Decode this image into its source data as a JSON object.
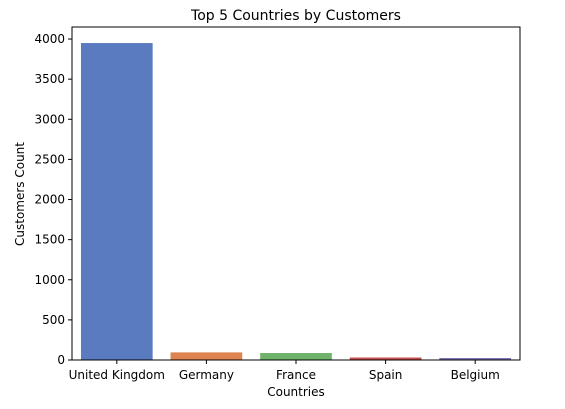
{
  "chart_data": {
    "type": "bar",
    "title": "Top 5 Countries by Customers",
    "xlabel": "Countries",
    "ylabel": "Customers Count",
    "categories": [
      "United Kingdom",
      "Germany",
      "France",
      "Spain",
      "Belgium"
    ],
    "values": [
      3950,
      95,
      87,
      31,
      25
    ],
    "colors": [
      "#5a7bc0",
      "#dd8452",
      "#6fb26a",
      "#c44e52",
      "#8172b3"
    ],
    "ylim": [
      0,
      4150
    ],
    "yticks": [
      0,
      500,
      1000,
      1500,
      2000,
      2500,
      3000,
      3500,
      4000
    ],
    "grid": false,
    "legend": "none"
  }
}
